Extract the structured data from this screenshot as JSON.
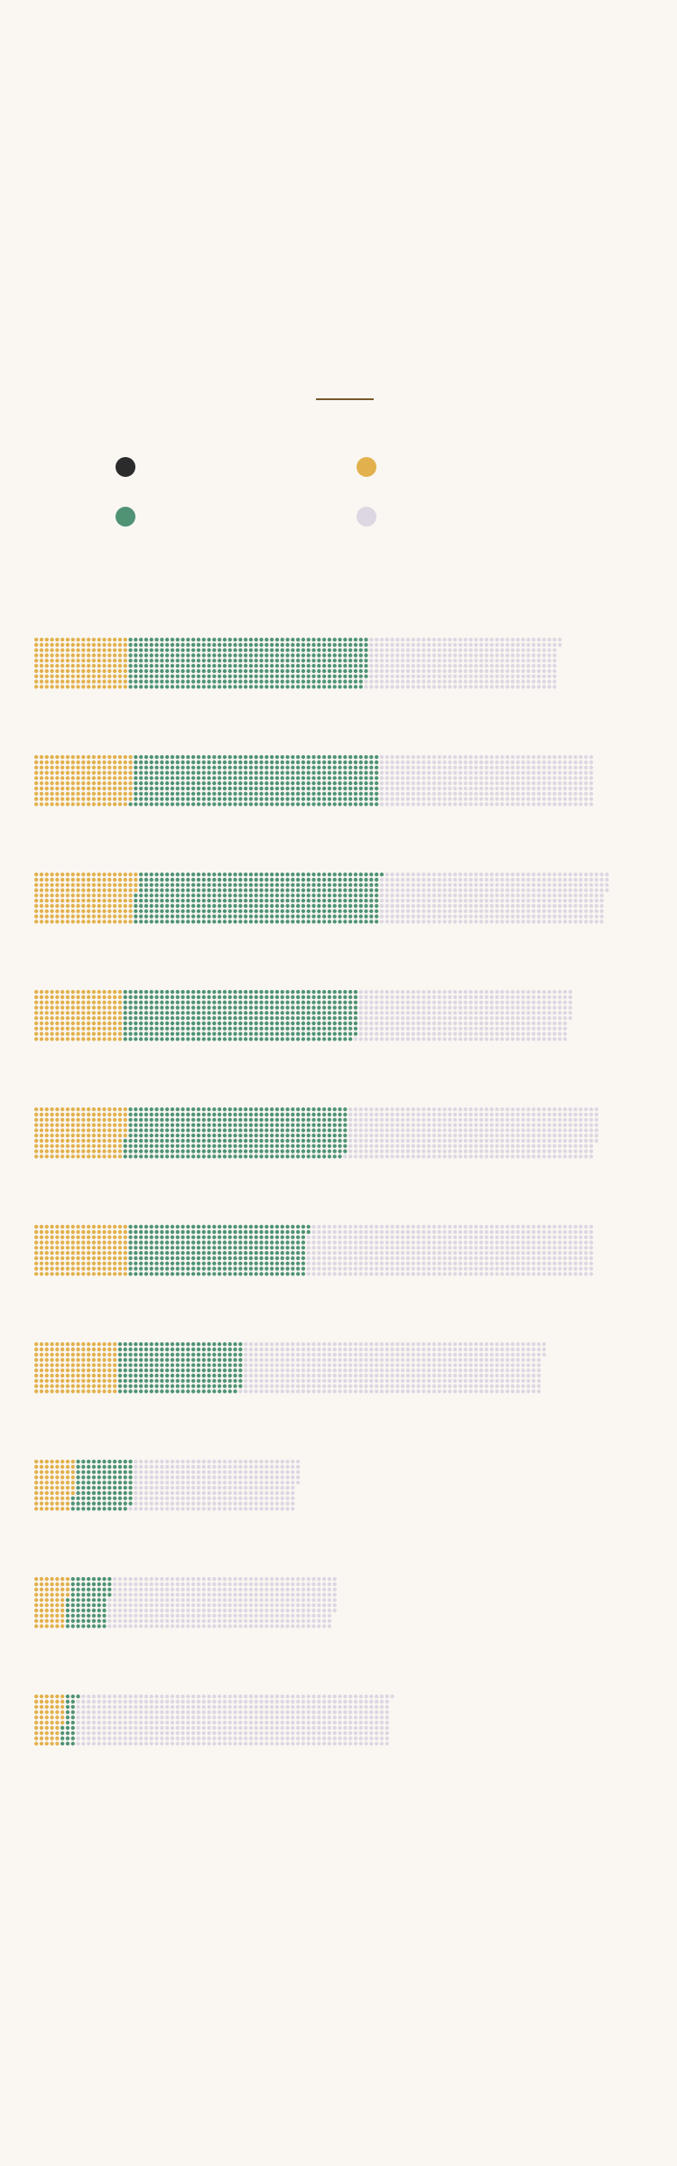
{
  "chart_data": {
    "type": "waffle-bar",
    "title": "",
    "series": [
      {
        "name": "",
        "color": "#2b2b2b"
      },
      {
        "name": "",
        "color": "#e2b14d"
      },
      {
        "name": "",
        "color": "#4f9374"
      },
      {
        "name": "",
        "color": "#ddd7e2"
      }
    ],
    "rows": [
      {
        "values": [
          0,
          180,
          458,
          364
        ]
      },
      {
        "values": [
          0,
          189,
          471,
          410
        ]
      },
      {
        "values": [
          0,
          194,
          467,
          433
        ]
      },
      {
        "values": [
          0,
          170,
          449,
          407
        ]
      },
      {
        "values": [
          0,
          176,
          423,
          478
        ]
      },
      {
        "values": [
          0,
          180,
          342,
          548
        ]
      },
      {
        "values": [
          0,
          160,
          239,
          574
        ]
      },
      {
        "values": [
          0,
          77,
          112,
          316
        ]
      },
      {
        "values": [
          0,
          64,
          80,
          433
        ]
      },
      {
        "values": [
          0,
          56,
          25,
          600
        ]
      }
    ],
    "dot_rows_per_bar": 10
  }
}
